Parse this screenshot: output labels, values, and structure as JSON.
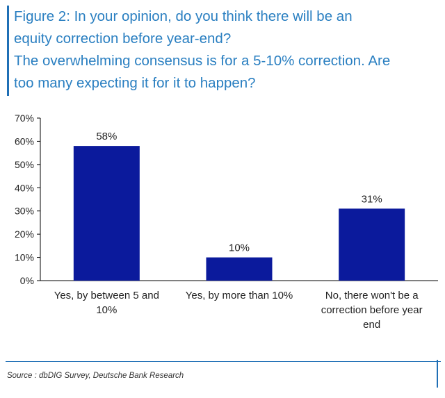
{
  "figure": {
    "title_lines": [
      "Figure 2: In your opinion, do you think there will be an",
      "equity correction before year-end?",
      "The overwhelming consensus is for a 5-10% correction. Are",
      "too many expecting it for it to happen?"
    ]
  },
  "source": "Source : dbDIG Survey, Deutsche Bank Research",
  "colors": {
    "bar": "#0b1a9c",
    "title": "#2a7fc1",
    "accent": "#1f6fb5"
  },
  "chart_data": {
    "type": "bar",
    "title": "In your opinion, do you think there will be an equity correction before year-end?",
    "xlabel": "",
    "ylabel": "",
    "ylim": [
      0,
      70
    ],
    "yticks": [
      0,
      10,
      20,
      30,
      40,
      50,
      60,
      70
    ],
    "ytick_labels": [
      "0%",
      "10%",
      "20%",
      "30%",
      "40%",
      "50%",
      "60%",
      "70%"
    ],
    "grid": false,
    "categories": [
      [
        "Yes, by between 5 and",
        "10%"
      ],
      [
        "Yes, by more than 10%"
      ],
      [
        "No, there won't be a",
        "correction before year",
        "end"
      ]
    ],
    "values": [
      58,
      10,
      31
    ],
    "data_labels": [
      "58%",
      "10%",
      "31%"
    ]
  }
}
